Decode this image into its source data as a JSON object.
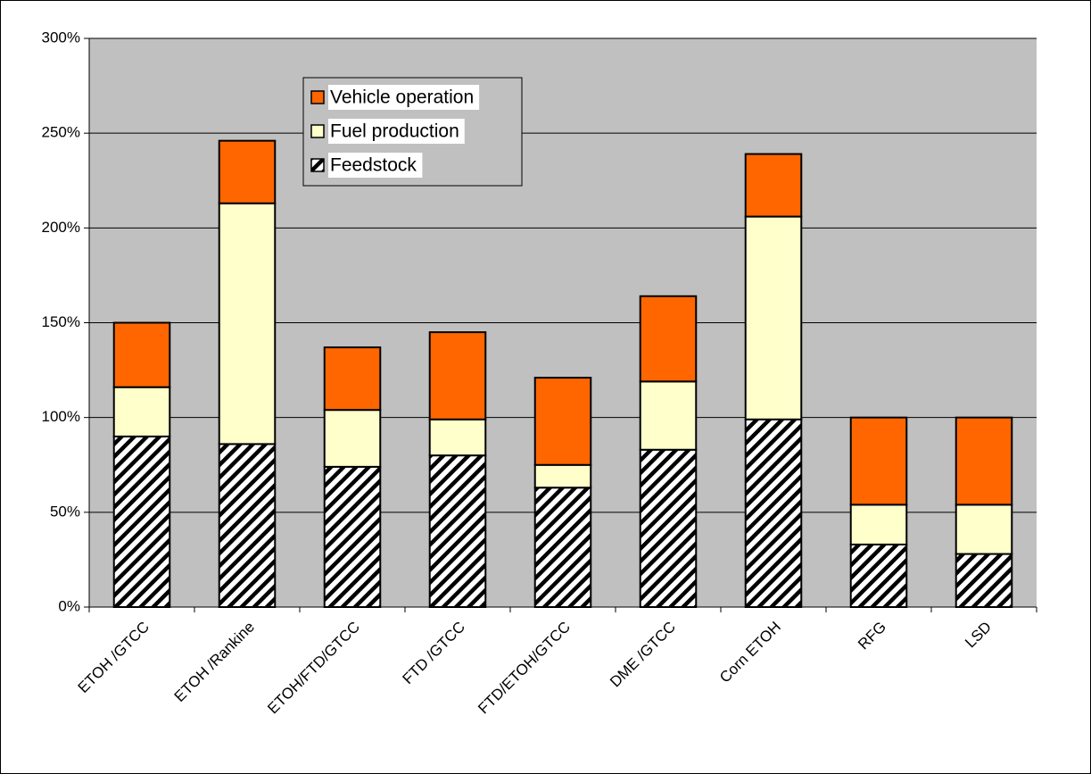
{
  "chart_data": {
    "type": "stacked-bar",
    "categories": [
      "ETOH /GTCC",
      "ETOH /Rankine",
      "ETOH/FTD/GTCC",
      "FTD /GTCC",
      "FTD/ETOH/GTCC",
      "DME /GTCC",
      "Corn ETOH",
      "RFG",
      "LSD"
    ],
    "series": [
      {
        "name": "Feedstock",
        "color": "#000000",
        "values": [
          90,
          86,
          74,
          80,
          63,
          83,
          99,
          33,
          28
        ]
      },
      {
        "name": "Fuel production",
        "color": "#FFFFCC",
        "values": [
          26,
          127,
          30,
          19,
          12,
          36,
          107,
          21,
          26
        ]
      },
      {
        "name": "Vehicle operation",
        "color": "#FF6600",
        "values": [
          34,
          33,
          33,
          46,
          46,
          45,
          33,
          46,
          46
        ]
      }
    ],
    "ylim": [
      0,
      300
    ],
    "yticks": [
      {
        "value": 0,
        "label": "0%"
      },
      {
        "value": 50,
        "label": "50%"
      },
      {
        "value": 100,
        "label": "100%"
      },
      {
        "value": 150,
        "label": "150%"
      },
      {
        "value": 200,
        "label": "200%"
      },
      {
        "value": 250,
        "label": "250%"
      },
      {
        "value": 300,
        "label": "300%"
      }
    ],
    "grid": true,
    "legend": "top-left"
  }
}
